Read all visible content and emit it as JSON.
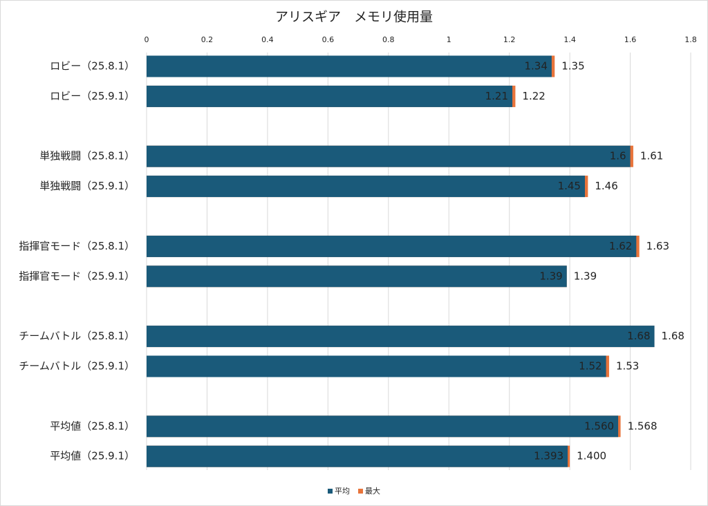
{
  "chart_data": {
    "type": "bar",
    "title": "アリスギア　メモリ使用量",
    "categories": [
      "ロビー（25.8.1）",
      "ロビー（25.9.1）",
      null,
      "単独戦闘（25.8.1）",
      "単独戦闘（25.9.1）",
      null,
      "指揮官モード（25.8.1）",
      "指揮官モード（25.9.1）",
      null,
      "チームバトル（25.8.1）",
      "チームバトル（25.9.1）",
      null,
      "平均値（25.8.1）",
      "平均値（25.9.1）"
    ],
    "series": [
      {
        "name": "平均",
        "color": "#1a5a7a",
        "values": [
          1.34,
          1.21,
          null,
          1.6,
          1.45,
          null,
          1.62,
          1.39,
          null,
          1.68,
          1.52,
          null,
          1.56,
          1.393
        ],
        "value_labels": [
          "1.34",
          "1.21",
          null,
          "1.6",
          "1.45",
          null,
          "1.62",
          "1.39",
          null,
          "1.68",
          "1.52",
          null,
          "1.560",
          "1.393"
        ]
      },
      {
        "name": "最大",
        "color": "#e8743b",
        "values": [
          1.35,
          1.22,
          null,
          1.61,
          1.46,
          null,
          1.63,
          1.39,
          null,
          1.68,
          1.53,
          null,
          1.568,
          1.4
        ],
        "value_labels": [
          "1.35",
          "1.22",
          null,
          "1.61",
          "1.46",
          null,
          "1.63",
          "1.39",
          null,
          "1.68",
          "1.53",
          null,
          "1.568",
          "1.400"
        ]
      }
    ],
    "xlim": [
      0,
      1.8
    ],
    "xticks": [
      0,
      0.2,
      0.4,
      0.6,
      0.8,
      1,
      1.2,
      1.4,
      1.6,
      1.8
    ],
    "grid": true,
    "legend": "bottom"
  }
}
